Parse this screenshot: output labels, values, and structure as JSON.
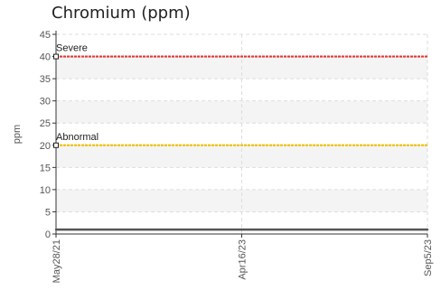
{
  "chart_data": {
    "type": "line",
    "title": "Chromium (ppm)",
    "xlabel": "",
    "ylabel": "ppm",
    "x_ticks": [
      "May28/21",
      "Apr16/23",
      "Sep5/23"
    ],
    "ylim": [
      0,
      45
    ],
    "y_ticks": [
      0,
      5,
      10,
      15,
      20,
      25,
      30,
      35,
      40,
      45
    ],
    "grid": true,
    "series": [
      {
        "values": [
          1,
          1,
          1
        ],
        "color": "#555555"
      }
    ],
    "thresholds": [
      {
        "label": "Severe",
        "value": 40,
        "color": "#e53935"
      },
      {
        "label": "Abnormal",
        "value": 20,
        "color": "#f2c10f"
      }
    ]
  }
}
